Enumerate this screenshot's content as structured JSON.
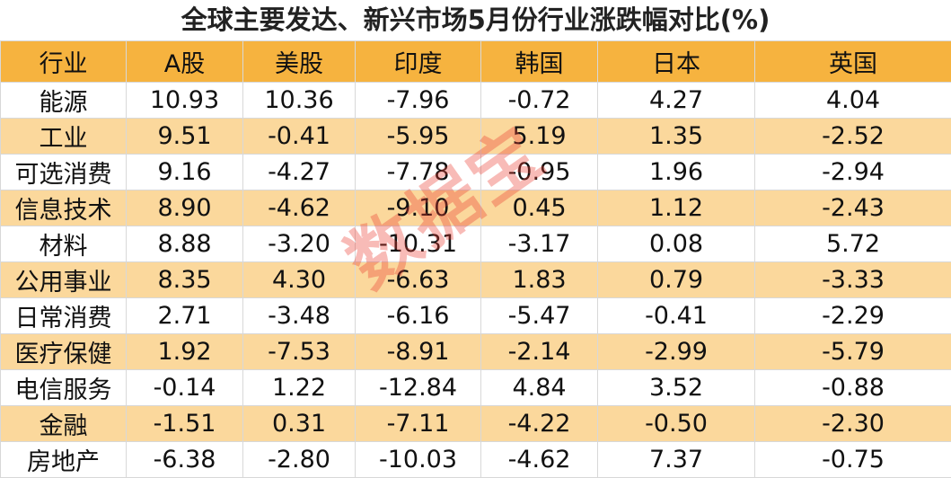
{
  "title": "全球主要发达、新兴市场5月份行业涨跌幅对比(%)",
  "watermark": "数据宝",
  "table": {
    "header": [
      "行业",
      "A股",
      "美股",
      "印度",
      "韩国",
      "日本",
      "英国"
    ],
    "rows": [
      [
        "能源",
        "10.93",
        "10.36",
        "-7.96",
        "-0.72",
        "4.27",
        "4.04"
      ],
      [
        "工业",
        "9.51",
        "-0.41",
        "-5.95",
        "5.19",
        "1.35",
        "-2.52"
      ],
      [
        "可选消费",
        "9.16",
        "-4.27",
        "-7.78",
        "-0.95",
        "1.96",
        "-2.94"
      ],
      [
        "信息技术",
        "8.90",
        "-4.62",
        "-9.10",
        "0.45",
        "1.12",
        "-2.43"
      ],
      [
        "材料",
        "8.88",
        "-3.20",
        "-10.31",
        "-3.17",
        "0.08",
        "5.72"
      ],
      [
        "公用事业",
        "8.35",
        "4.30",
        "-6.63",
        "1.83",
        "0.79",
        "-3.33"
      ],
      [
        "日常消费",
        "2.71",
        "-3.48",
        "-6.16",
        "-5.47",
        "-0.41",
        "-2.29"
      ],
      [
        "医疗保健",
        "1.92",
        "-7.53",
        "-8.91",
        "-2.14",
        "-2.99",
        "-5.79"
      ],
      [
        "电信服务",
        "-0.14",
        "1.22",
        "-12.84",
        "4.84",
        "3.52",
        "-0.88"
      ],
      [
        "金融",
        "-1.51",
        "0.31",
        "-7.11",
        "-4.22",
        "-0.50",
        "-2.30"
      ],
      [
        "房地产",
        "-6.38",
        "-2.80",
        "-10.03",
        "-4.62",
        "7.37",
        "-0.75"
      ]
    ]
  }
}
